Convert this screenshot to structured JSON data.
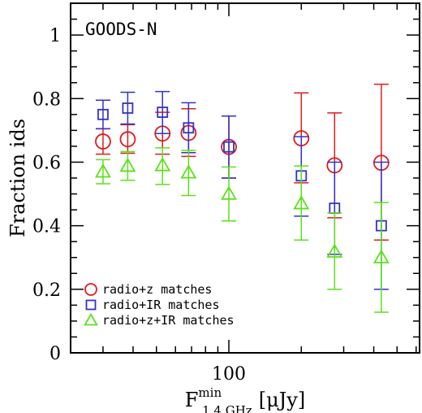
{
  "chart_data": {
    "type": "scatter",
    "annotation": "GOODS-N",
    "ylabel": "Fraction ids",
    "xlabel_main": "F",
    "xlabel_sup": "min",
    "xlabel_sub": "1.4 GHz",
    "xlabel_unit": "[μJy]",
    "x_scale": "log",
    "xlim": [
      22,
      620
    ],
    "ylim": [
      0,
      1.1
    ],
    "y_ticks": [
      0,
      0.2,
      0.4,
      0.6,
      0.8,
      1
    ],
    "y_tick_labels": [
      "0",
      "0.2",
      "0.4",
      "0.6",
      "0.8",
      "1"
    ],
    "x_tick_labels": [
      {
        "value": 100,
        "label": "100"
      }
    ],
    "legend_position": "bottom-left",
    "series": [
      {
        "name": "radio+z matches",
        "marker": "circle",
        "color": "#dd1c1c",
        "points": [
          {
            "x": 30,
            "y": 0.665,
            "lo": 0.625,
            "hi": 0.705
          },
          {
            "x": 38,
            "y": 0.672,
            "lo": 0.628,
            "hi": 0.718
          },
          {
            "x": 53,
            "y": 0.69,
            "lo": 0.625,
            "hi": 0.757
          },
          {
            "x": 68,
            "y": 0.692,
            "lo": 0.618,
            "hi": 0.768
          },
          {
            "x": 100,
            "y": 0.648,
            "lo": 0.55,
            "hi": 0.745
          },
          {
            "x": 200,
            "y": 0.675,
            "lo": 0.535,
            "hi": 0.818
          },
          {
            "x": 275,
            "y": 0.59,
            "lo": 0.425,
            "hi": 0.755
          },
          {
            "x": 430,
            "y": 0.598,
            "lo": 0.355,
            "hi": 0.845
          }
        ]
      },
      {
        "name": "radio+IR matches",
        "marker": "square",
        "color": "#3232cc",
        "points": [
          {
            "x": 30,
            "y": 0.75,
            "lo": 0.705,
            "hi": 0.795
          },
          {
            "x": 38,
            "y": 0.77,
            "lo": 0.72,
            "hi": 0.82
          },
          {
            "x": 53,
            "y": 0.757,
            "lo": 0.69,
            "hi": 0.822
          },
          {
            "x": 68,
            "y": 0.708,
            "lo": 0.63,
            "hi": 0.787
          },
          {
            "x": 100,
            "y": 0.648,
            "lo": 0.55,
            "hi": 0.745
          },
          {
            "x": 200,
            "y": 0.557,
            "lo": 0.43,
            "hi": 0.68
          },
          {
            "x": 275,
            "y": 0.455,
            "lo": 0.31,
            "hi": 0.6
          },
          {
            "x": 430,
            "y": 0.4,
            "lo": 0.2,
            "hi": 0.6
          }
        ]
      },
      {
        "name": "radio+z+IR matches",
        "marker": "triangle",
        "color": "#5ce11a",
        "points": [
          {
            "x": 30,
            "y": 0.57,
            "lo": 0.532,
            "hi": 0.608
          },
          {
            "x": 38,
            "y": 0.588,
            "lo": 0.543,
            "hi": 0.633
          },
          {
            "x": 53,
            "y": 0.59,
            "lo": 0.53,
            "hi": 0.645
          },
          {
            "x": 68,
            "y": 0.567,
            "lo": 0.495,
            "hi": 0.637
          },
          {
            "x": 100,
            "y": 0.5,
            "lo": 0.415,
            "hi": 0.585
          },
          {
            "x": 200,
            "y": 0.47,
            "lo": 0.355,
            "hi": 0.588
          },
          {
            "x": 275,
            "y": 0.318,
            "lo": 0.2,
            "hi": 0.44
          },
          {
            "x": 430,
            "y": 0.3,
            "lo": 0.128,
            "hi": 0.473
          }
        ]
      }
    ]
  }
}
